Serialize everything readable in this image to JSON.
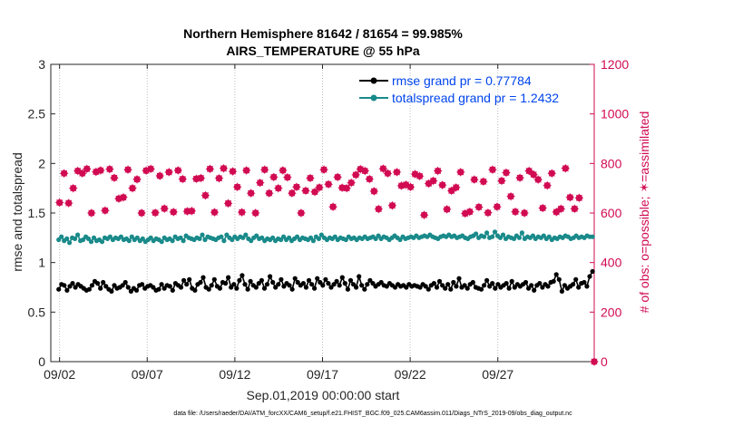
{
  "chart_data": {
    "type": "line",
    "title": [
      "Northern Hemisphere 81642 / 81654 = 99.985%",
      "AIRS_TEMPERATURE @ 55 hPa"
    ],
    "xlabel": "Sep.01,2019 00:00:00 start",
    "ylabel_left": "rmse and totalspread",
    "ylabel_right": "# of obs: o=possible; ✶=assimilated",
    "xlim": [
      0.5,
      31.5
    ],
    "ylim_left": [
      0,
      3
    ],
    "ylim_right": [
      0,
      1200
    ],
    "x_ticks": [
      1,
      6,
      11,
      16,
      21,
      26
    ],
    "x_tick_labels": [
      "09/02",
      "09/07",
      "09/12",
      "09/17",
      "09/22",
      "09/27"
    ],
    "y_ticks_left": [
      0,
      0.5,
      1,
      1.5,
      2,
      2.5,
      3
    ],
    "y_tick_labels_left": [
      "0",
      "0.5",
      "1",
      "1.5",
      "2",
      "2.5",
      "3"
    ],
    "y_ticks_right": [
      0,
      200,
      400,
      600,
      800,
      1000,
      1200
    ],
    "y_tick_labels_right": [
      "0",
      "200",
      "400",
      "600",
      "800",
      "1000",
      "1200"
    ],
    "grid": true,
    "legend_position": "top-right",
    "footer": "data file: /Users/raeder/DAI/ATM_forcXX/CAM6_setup/f.e21.FHIST_BGC.f09_025.CAM6assim.011/Diags_NTrS_2019-09/obs_diag_output.nc",
    "x_step": 0.25,
    "series": [
      {
        "name": "rmse grand pr = 0.77784",
        "axis": "left",
        "color": "#000000",
        "marker": "circle",
        "values": [
          0.73,
          0.78,
          0.77,
          0.72,
          0.76,
          0.79,
          0.75,
          0.78,
          0.76,
          0.74,
          0.72,
          0.73,
          0.77,
          0.81,
          0.79,
          0.74,
          0.8,
          0.76,
          0.73,
          0.71,
          0.77,
          0.74,
          0.75,
          0.77,
          0.8,
          0.75,
          0.71,
          0.74,
          0.72,
          0.77,
          0.78,
          0.74,
          0.76,
          0.77,
          0.75,
          0.72,
          0.73,
          0.78,
          0.74,
          0.77,
          0.76,
          0.72,
          0.79,
          0.77,
          0.75,
          0.82,
          0.78,
          0.83,
          0.74,
          0.72,
          0.78,
          0.8,
          0.85,
          0.75,
          0.73,
          0.77,
          0.83,
          0.76,
          0.74,
          0.8,
          0.79,
          0.85,
          0.75,
          0.78,
          0.74,
          0.82,
          0.87,
          0.78,
          0.73,
          0.81,
          0.77,
          0.75,
          0.79,
          0.82,
          0.74,
          0.78,
          0.86,
          0.8,
          0.75,
          0.78,
          0.83,
          0.76,
          0.79,
          0.77,
          0.73,
          0.84,
          0.8,
          0.77,
          0.79,
          0.75,
          0.82,
          0.78,
          0.74,
          0.84,
          0.8,
          0.77,
          0.83,
          0.79,
          0.75,
          0.78,
          0.81,
          0.77,
          0.85,
          0.79,
          0.73,
          0.82,
          0.78,
          0.75,
          0.86,
          0.77,
          0.73,
          0.78,
          0.82,
          0.79,
          0.76,
          0.78,
          0.8,
          0.77,
          0.76,
          0.79,
          0.77,
          0.75,
          0.78,
          0.76,
          0.77,
          0.75,
          0.78,
          0.76,
          0.77,
          0.76,
          0.75,
          0.78,
          0.76,
          0.73,
          0.77,
          0.79,
          0.75,
          0.81,
          0.77,
          0.74,
          0.78,
          0.73,
          0.8,
          0.76,
          0.84,
          0.75,
          0.77,
          0.74,
          0.78,
          0.8,
          0.75,
          0.74,
          0.73,
          0.77,
          0.82,
          0.76,
          0.79,
          0.74,
          0.78,
          0.75,
          0.77,
          0.79,
          0.74,
          0.81,
          0.75,
          0.78,
          0.76,
          0.78,
          0.8,
          0.74,
          0.77,
          0.72,
          0.77,
          0.79,
          0.75,
          0.78,
          0.76,
          0.8,
          0.81,
          0.88,
          0.83,
          0.71,
          0.77,
          0.74,
          0.76,
          0.78,
          0.83,
          0.75,
          0.79,
          0.8,
          0.76,
          0.86,
          0.91
        ]
      },
      {
        "name": "totalspread grand pr = 1.2432",
        "axis": "left",
        "color": "#1a8a8a",
        "marker": "circle",
        "values": [
          1.23,
          1.26,
          1.22,
          1.24,
          1.2,
          1.25,
          1.24,
          1.28,
          1.22,
          1.23,
          1.26,
          1.24,
          1.21,
          1.25,
          1.22,
          1.23,
          1.21,
          1.25,
          1.24,
          1.26,
          1.23,
          1.25,
          1.24,
          1.26,
          1.23,
          1.24,
          1.22,
          1.26,
          1.23,
          1.25,
          1.22,
          1.24,
          1.21,
          1.23,
          1.25,
          1.22,
          1.24,
          1.23,
          1.21,
          1.25,
          1.23,
          1.24,
          1.22,
          1.26,
          1.24,
          1.25,
          1.22,
          1.27,
          1.25,
          1.24,
          1.23,
          1.25,
          1.24,
          1.28,
          1.23,
          1.26,
          1.25,
          1.24,
          1.23,
          1.25,
          1.26,
          1.22,
          1.28,
          1.25,
          1.23,
          1.26,
          1.24,
          1.26,
          1.25,
          1.28,
          1.24,
          1.22,
          1.25,
          1.27,
          1.24,
          1.25,
          1.22,
          1.24,
          1.23,
          1.25,
          1.22,
          1.24,
          1.23,
          1.26,
          1.23,
          1.25,
          1.22,
          1.24,
          1.26,
          1.23,
          1.25,
          1.24,
          1.23,
          1.25,
          1.22,
          1.26,
          1.24,
          1.28,
          1.25,
          1.23,
          1.25,
          1.24,
          1.26,
          1.23,
          1.25,
          1.24,
          1.23,
          1.26,
          1.24,
          1.25,
          1.23,
          1.25,
          1.24,
          1.26,
          1.24,
          1.25,
          1.26,
          1.24,
          1.27,
          1.24,
          1.26,
          1.25,
          1.23,
          1.25,
          1.27,
          1.25,
          1.23,
          1.26,
          1.24,
          1.25,
          1.26,
          1.25,
          1.27,
          1.25,
          1.26,
          1.27,
          1.26,
          1.28,
          1.26,
          1.25,
          1.24,
          1.26,
          1.27,
          1.26,
          1.28,
          1.26,
          1.27,
          1.25,
          1.26,
          1.27,
          1.25,
          1.24,
          1.26,
          1.27,
          1.29,
          1.25,
          1.27,
          1.26,
          1.3,
          1.25,
          1.26,
          1.31,
          1.27,
          1.25,
          1.28,
          1.24,
          1.26,
          1.25,
          1.24,
          1.27,
          1.25,
          1.3,
          1.24,
          1.26,
          1.25,
          1.27,
          1.24,
          1.26,
          1.25,
          1.27,
          1.24,
          1.26,
          1.23,
          1.25,
          1.24,
          1.26,
          1.25,
          1.27,
          1.26,
          1.24,
          1.25,
          1.27,
          1.25,
          1.26,
          1.25,
          1.27,
          1.26,
          1.26
        ]
      },
      {
        "name": "obs possible",
        "axis": "right",
        "color": "#d10a52",
        "marker": "circle",
        "values": [
          642,
          760,
          640,
          700,
          770,
          760,
          778,
          600,
          766,
          772,
          610,
          777,
          742,
          658,
          663,
          775,
          700,
          736,
          600,
          771,
          778,
          601,
          750,
          618,
          765,
          604,
          772,
          737,
          607,
          608,
          738,
          741,
          671,
          778,
          603,
          740,
          780,
          639,
          768,
          705,
          603,
          772,
          680,
          600,
          722,
          775,
          680,
          745,
          700,
          772,
          744,
          680,
          705,
          600,
          690,
          741,
          685,
          703,
          775,
          716,
          625,
          745,
          702,
          700,
          722,
          754,
          777,
          770,
          737,
          688,
          616,
          779,
          760,
          630,
          765,
          710,
          714,
          705,
          757,
          749,
          592,
          719,
          730,
          770,
          713,
          615,
          690,
          703,
          765,
          598,
          605,
          735,
          624,
          727,
          601,
          775,
          625,
          730,
          763,
          667,
          605,
          742,
          600,
          770,
          755,
          735,
          620,
          711,
          760,
          604,
          617,
          780,
          663,
          617,
          661,
          0
        ]
      },
      {
        "name": "obs assimilated",
        "axis": "right",
        "color": "#d10a52",
        "marker": "star",
        "values": [
          642,
          760,
          640,
          700,
          770,
          760,
          778,
          600,
          766,
          772,
          610,
          777,
          742,
          658,
          663,
          775,
          700,
          736,
          600,
          771,
          778,
          601,
          750,
          618,
          765,
          604,
          772,
          737,
          607,
          608,
          738,
          741,
          671,
          778,
          603,
          740,
          780,
          639,
          768,
          705,
          603,
          772,
          680,
          600,
          722,
          775,
          680,
          745,
          700,
          772,
          744,
          680,
          705,
          600,
          690,
          741,
          685,
          703,
          775,
          716,
          625,
          745,
          702,
          700,
          722,
          754,
          777,
          770,
          737,
          688,
          616,
          779,
          760,
          630,
          765,
          710,
          714,
          705,
          757,
          749,
          592,
          719,
          730,
          770,
          713,
          615,
          690,
          703,
          765,
          598,
          605,
          735,
          624,
          727,
          601,
          775,
          625,
          730,
          763,
          667,
          605,
          742,
          600,
          770,
          755,
          735,
          620,
          711,
          760,
          604,
          617,
          780,
          663,
          617,
          661,
          0
        ]
      }
    ],
    "obs_x_start": 1.0,
    "obs_x_step": 0.26
  },
  "legend": {
    "rmse_label": "rmse grand pr = 0.77784",
    "spread_label": "totalspread grand pr = 1.2432"
  }
}
